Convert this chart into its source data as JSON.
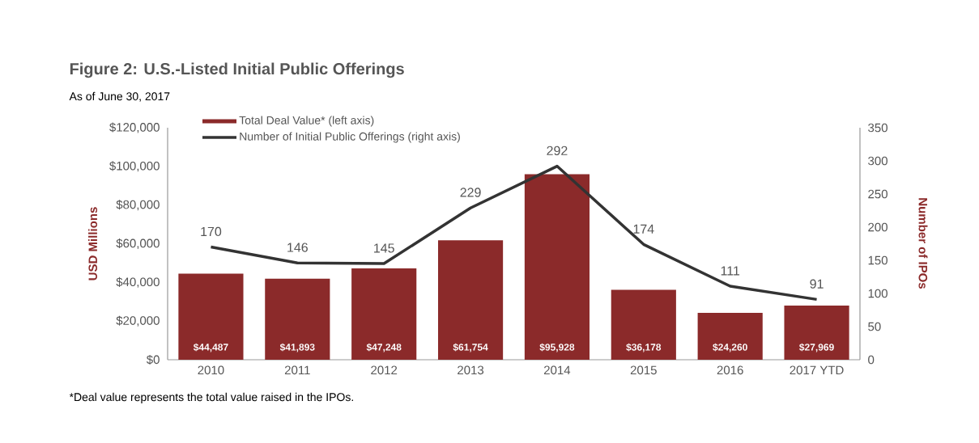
{
  "chart_data": {
    "type": "bar",
    "title": "**Figure 2:** U.S.-Listed Initial Public Offerings",
    "subtitle": "As of June 30, 2017",
    "ylabel": "USD Millions",
    "y2label": "Number of IPOs",
    "categories": [
      "2010",
      "2011",
      "2012",
      "2013",
      "2014",
      "2015",
      "2016",
      "2017 YTD"
    ],
    "series": [
      {
        "name": "Total Deal Value* (left axis)",
        "color": "#8b2a2a",
        "values": [
          44487,
          41893,
          47248,
          61754,
          95928,
          36178,
          24260,
          27969
        ],
        "value_labels": [
          "$44,487",
          "$41,893",
          "$47,248",
          "$61,754",
          "$95,928",
          "$36,178",
          "$24,260",
          "$27,969"
        ]
      },
      {
        "name": "Number of Initial Public Offerings (right axis)",
        "type": "line",
        "axis": "y2",
        "color": "#333333",
        "values": [
          170,
          146,
          145,
          229,
          292,
          174,
          111,
          91
        ],
        "value_labels": [
          "170",
          "146",
          "145",
          "229",
          "292",
          "174",
          "111",
          "91"
        ]
      }
    ],
    "ylim": [
      0,
      120000
    ],
    "yticks": [
      {
        "value": 0,
        "label": "$0"
      },
      {
        "value": 20000,
        "label": "$20,000"
      },
      {
        "value": 40000,
        "label": "$40,000"
      },
      {
        "value": 60000,
        "label": "$60,000"
      },
      {
        "value": 80000,
        "label": "$80,000"
      },
      {
        "value": 100000,
        "label": "$100,000"
      },
      {
        "value": 120000,
        "label": "$120,000"
      }
    ],
    "y2lim": [
      0,
      350
    ],
    "y2ticks": [
      0,
      50,
      100,
      150,
      200,
      250,
      300,
      350
    ],
    "legend": "top left",
    "annotations": [
      "*Deal value represents the total value raised in the IPOs."
    ]
  }
}
